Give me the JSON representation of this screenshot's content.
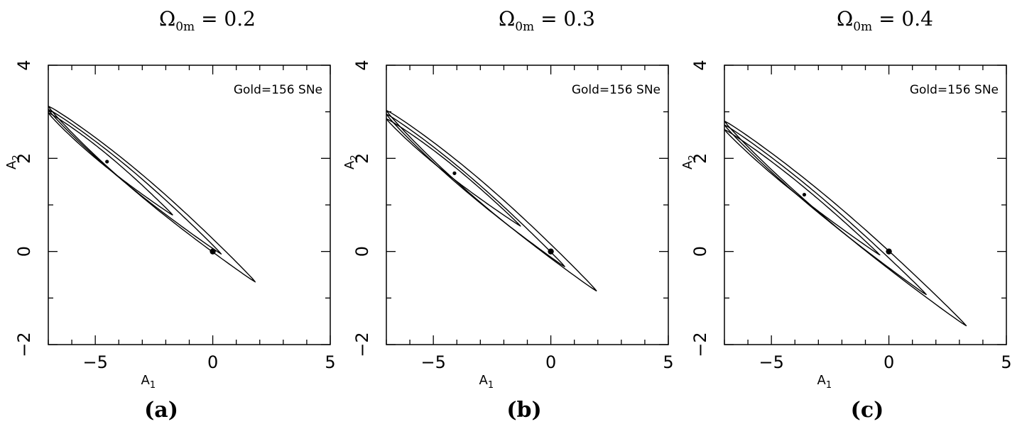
{
  "chart_data": [
    {
      "type": "contour",
      "title": "Ω0m = 0.2",
      "title_main": "Ω",
      "title_sub": "0m",
      "title_rest": " = 0.2",
      "panel_label": "(a)",
      "xlabel": "A",
      "xlabel_sub": "1",
      "ylabel": "A",
      "ylabel_sub": "2",
      "annotation": "Gold=156 SNe",
      "xlim": [
        -7,
        5
      ],
      "ylim": [
        -2,
        4
      ],
      "xticks": [
        -5,
        0,
        5
      ],
      "yticks": [
        -2,
        0,
        2,
        4
      ],
      "xtick_labels": [
        "−5",
        "0",
        "5"
      ],
      "ytick_labels": [
        "−2",
        "0",
        "2",
        "4"
      ],
      "best_fit": [
        -4.5,
        1.93
      ],
      "reference_point": [
        0,
        0
      ],
      "contours": [
        {
          "level": "inner",
          "center": [
            -3.1,
            1.33
          ],
          "tip_low": [
            -1.7,
            0.78
          ],
          "tip_high": [
            -7.0,
            2.98
          ],
          "half_width": 0.12
        },
        {
          "level": "middle",
          "center": [
            -1.7,
            0.78
          ],
          "tip_low": [
            0.35,
            -0.05
          ],
          "tip_high": [
            -7.0,
            3.05
          ],
          "half_width": 0.16
        },
        {
          "level": "outer",
          "center": [
            -2.6,
            1.25
          ],
          "tip_low": [
            1.8,
            -0.65
          ],
          "tip_high": [
            -7.0,
            3.12
          ],
          "half_width": 0.2
        }
      ]
    },
    {
      "type": "contour",
      "title": "Ω0m = 0.3",
      "title_main": "Ω",
      "title_sub": "0m",
      "title_rest": " = 0.3",
      "panel_label": "(b)",
      "xlabel": "A",
      "xlabel_sub": "1",
      "ylabel": "A",
      "ylabel_sub": "2",
      "annotation": "Gold=156 SNe",
      "xlim": [
        -7,
        5
      ],
      "ylim": [
        -2,
        4
      ],
      "xticks": [
        -5,
        0,
        5
      ],
      "yticks": [
        -2,
        0,
        2,
        4
      ],
      "xtick_labels": [
        "−5",
        "0",
        "5"
      ],
      "ytick_labels": [
        "−2",
        "0",
        "2",
        "4"
      ],
      "best_fit": [
        -4.1,
        1.68
      ],
      "reference_point": [
        0,
        0
      ],
      "contours": [
        {
          "level": "inner",
          "center": [
            -3.0,
            1.25
          ],
          "tip_low": [
            -1.3,
            0.55
          ],
          "tip_high": [
            -7.0,
            2.85
          ],
          "half_width": 0.12
        },
        {
          "level": "middle",
          "center": [
            -1.5,
            0.6
          ],
          "tip_low": [
            0.6,
            -0.33
          ],
          "tip_high": [
            -7.0,
            2.95
          ],
          "half_width": 0.16
        },
        {
          "level": "outer",
          "center": [
            -2.5,
            1.05
          ],
          "tip_low": [
            1.95,
            -0.85
          ],
          "tip_high": [
            -7.0,
            3.03
          ],
          "half_width": 0.2
        }
      ]
    },
    {
      "type": "contour",
      "title": "Ω0m = 0.4",
      "title_main": "Ω",
      "title_sub": "0m",
      "title_rest": " = 0.4",
      "panel_label": "(c)",
      "xlabel": "A",
      "xlabel_sub": "1",
      "ylabel": "A",
      "ylabel_sub": "2",
      "annotation": "Gold=156 SNe",
      "xlim": [
        -7,
        5
      ],
      "ylim": [
        -2,
        4
      ],
      "xticks": [
        -5,
        0,
        5
      ],
      "yticks": [
        -2,
        0,
        2,
        4
      ],
      "xtick_labels": [
        "−5",
        "0",
        "5"
      ],
      "ytick_labels": [
        "−2",
        "0",
        "2",
        "4"
      ],
      "best_fit": [
        -3.6,
        1.22
      ],
      "reference_point": [
        0,
        0
      ],
      "contours": [
        {
          "level": "inner",
          "center": [
            -3.0,
            1.0
          ],
          "tip_low": [
            -0.4,
            -0.07
          ],
          "tip_high": [
            -7.0,
            2.62
          ],
          "half_width": 0.12
        },
        {
          "level": "middle",
          "center": [
            -2.0,
            0.6
          ],
          "tip_low": [
            1.6,
            -0.93
          ],
          "tip_high": [
            -7.0,
            2.72
          ],
          "half_width": 0.16
        },
        {
          "level": "outer",
          "center": [
            -2.0,
            0.6
          ],
          "tip_low": [
            3.3,
            -1.6
          ],
          "tip_high": [
            -7.0,
            2.8
          ],
          "half_width": 0.2
        }
      ]
    }
  ]
}
